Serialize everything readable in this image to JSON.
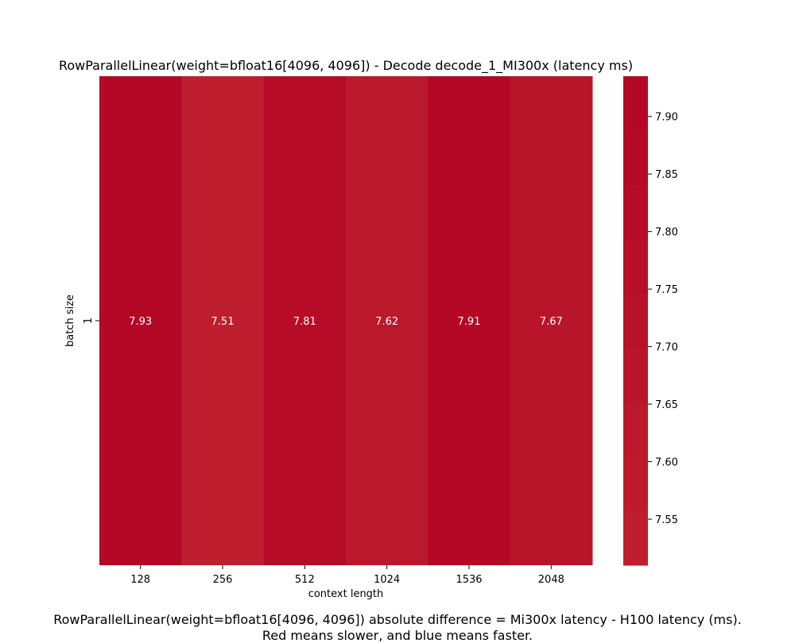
{
  "chart_data": {
    "type": "heatmap",
    "title": "RowParallelLinear(weight=bfloat16[4096, 4096]) - Decode decode_1_MI300x (latency ms)",
    "xlabel": "context length",
    "ylabel": "batch size",
    "x_categories": [
      "128",
      "256",
      "512",
      "1024",
      "1536",
      "2048"
    ],
    "y_categories": [
      "1"
    ],
    "values": [
      [
        7.93,
        7.51,
        7.81,
        7.62,
        7.91,
        7.67
      ]
    ],
    "value_labels": [
      "7.93",
      "7.51",
      "7.81",
      "7.62",
      "7.91",
      "7.67"
    ],
    "colorbar": {
      "range": [
        7.51,
        7.935
      ],
      "ticks": [
        "7.55",
        "7.60",
        "7.65",
        "7.70",
        "7.75",
        "7.80",
        "7.85",
        "7.90"
      ],
      "colors": [
        "#be1e2d",
        "#bd1b2c",
        "#bb182b",
        "#b9152a",
        "#b81229",
        "#b70f28",
        "#b60c27",
        "#b50a26",
        "#b40826"
      ]
    }
  },
  "captions": {
    "line1": "RowParallelLinear(weight=bfloat16[4096, 4096]) absolute difference = Mi300x latency - H100 latency (ms).",
    "line2": "Red means slower, and blue means faster."
  }
}
